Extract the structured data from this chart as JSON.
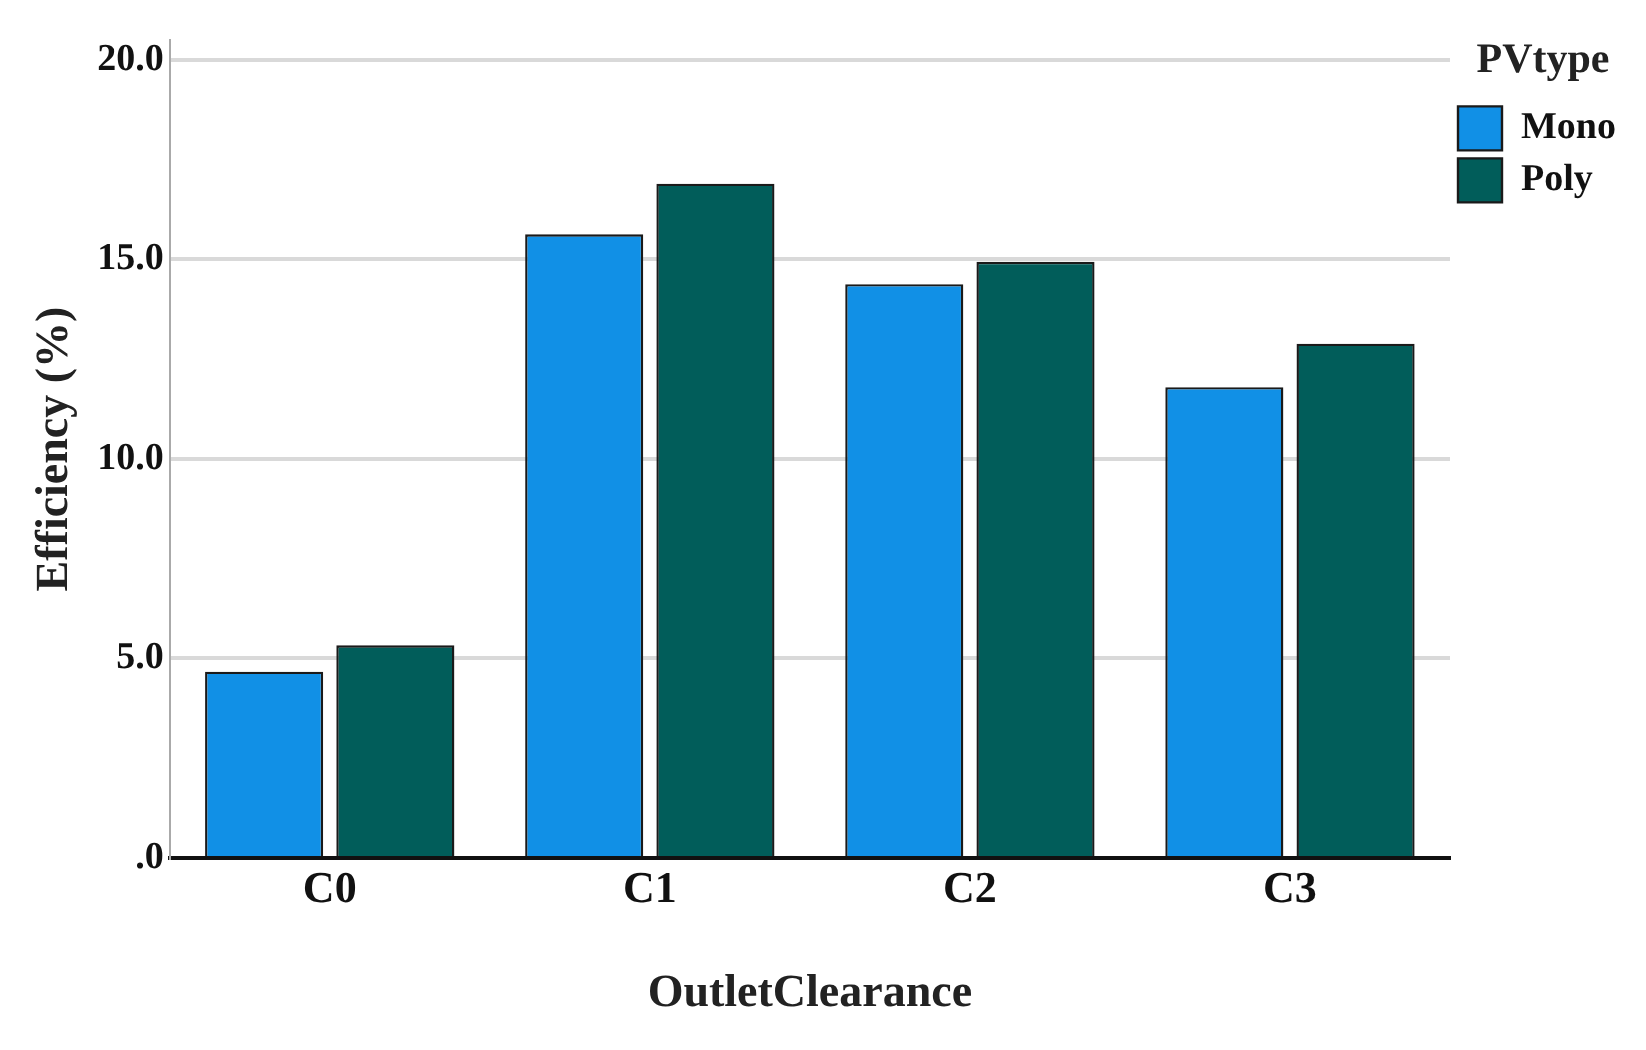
{
  "chart_data": {
    "type": "bar",
    "xlabel": "OutletClearance",
    "ylabel": "Efficiency (%)",
    "legend_title": "PVtype",
    "categories": [
      "C0",
      "C1",
      "C2",
      "C3"
    ],
    "series": [
      {
        "name": "Mono",
        "color": "#1190e6",
        "values": [
          4.67,
          15.63,
          14.38,
          11.8
        ]
      },
      {
        "name": "Poly",
        "color": "#015d5a",
        "values": [
          5.33,
          16.9,
          14.94,
          12.89
        ]
      }
    ],
    "ylim": [
      0,
      20.5
    ],
    "yticks": [
      {
        "value": 0,
        "label": ".0"
      },
      {
        "value": 5,
        "label": "5.0"
      },
      {
        "value": 10,
        "label": "10.0"
      },
      {
        "value": 15,
        "label": "15.0"
      },
      {
        "value": 20,
        "label": "20.0"
      }
    ],
    "grid": "y",
    "legend": "top right"
  }
}
